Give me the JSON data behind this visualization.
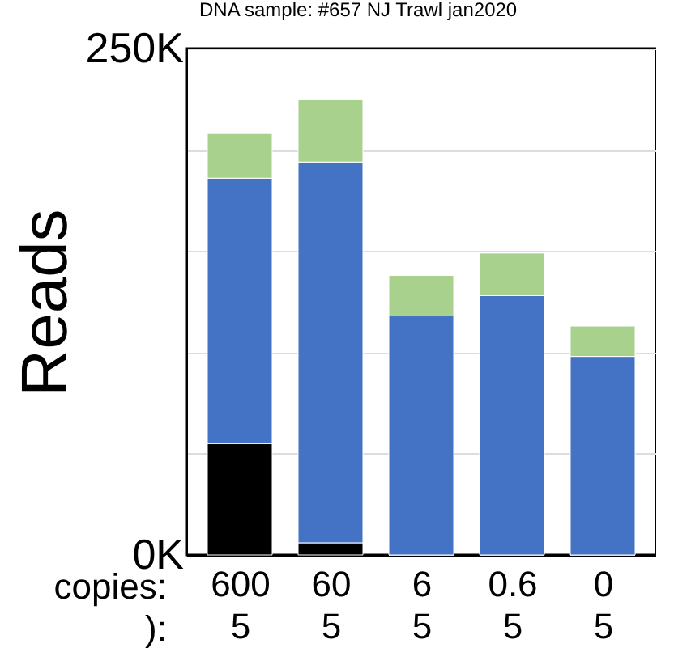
{
  "chart_data": {
    "type": "bar",
    "stacked": true,
    "title": "DNA sample: #657 NJ Trawl jan2020",
    "ylabel": "Reads",
    "categories": [
      "600\n5",
      "60\n5",
      "6\n5",
      "0.6\n5",
      "0\n5"
    ],
    "series": [
      {
        "color": "#000000",
        "values": [
          55000,
          6000,
          0,
          0,
          0
        ]
      },
      {
        "color": "#4472c4",
        "values": [
          131000,
          188000,
          118000,
          128000,
          98000
        ]
      },
      {
        "color": "#a9d18e",
        "values": [
          22000,
          31000,
          20000,
          21000,
          15000
        ]
      }
    ],
    "ylim": [
      0,
      250000
    ],
    "yticks": [
      {
        "value": 0,
        "label": "0K"
      },
      {
        "value": 50000,
        "label": null
      },
      {
        "value": 100000,
        "label": null
      },
      {
        "value": 150000,
        "label": null
      },
      {
        "value": 200000,
        "label": null
      },
      {
        "value": 250000,
        "label": "250K"
      }
    ],
    "grid": "y",
    "annotations": [
      "copies:",
      "):"
    ]
  }
}
